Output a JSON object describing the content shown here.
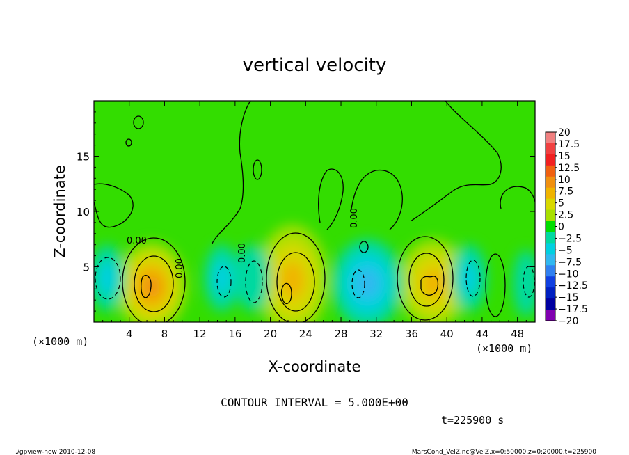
{
  "chart_data": {
    "type": "heatmap",
    "title": "vertical velocity",
    "xlabel": "X-coordinate",
    "ylabel": "Z-coordinate",
    "x_unit_left": "(×1000 m)",
    "x_unit_right": "(×1000 m)",
    "xlim": [
      0,
      50
    ],
    "ylim": [
      0,
      20
    ],
    "x_ticks": [
      "4",
      "8",
      "12",
      "16",
      "20",
      "24",
      "28",
      "32",
      "36",
      "40",
      "44",
      "48"
    ],
    "y_ticks": [
      "5",
      "10",
      "15"
    ],
    "colorbar_labels": [
      "20",
      "17.5",
      "15",
      "12.5",
      "10",
      "7.5",
      "5",
      "2.5",
      "0",
      "−2.5",
      "−5",
      "−7.5",
      "−10",
      "−12.5",
      "−15",
      "−17.5",
      "−20"
    ],
    "colorbar_colors": [
      "#f08080",
      "#f04040",
      "#f02020",
      "#f06010",
      "#f09010",
      "#f0b400",
      "#d8d800",
      "#a8e000",
      "#00dd00",
      "#00d9a0",
      "#00d0e0",
      "#30b8f0",
      "#3080f0",
      "#1040e0",
      "#0020c0",
      "#0000a0",
      "#8000b0"
    ],
    "contour_interval": "CONTOUR INTERVAL = 5.000E+00",
    "contour_labels": [
      "0.00",
      "0.00",
      "0.00",
      "0.00"
    ],
    "time_label": "t=225900 s",
    "anomalies": [
      {
        "x": 6.5,
        "z": 3.2,
        "w": 9,
        "rx": 4,
        "rz": 4
      },
      {
        "x": 22.5,
        "z": 3.8,
        "w": 7,
        "rx": 4,
        "rz": 5
      },
      {
        "x": 38.5,
        "z": 3.5,
        "w": 7,
        "rx": 4,
        "rz": 4
      },
      {
        "x": 31,
        "z": 3.5,
        "w": -8,
        "rx": 4,
        "rz": 4
      },
      {
        "x": 1.5,
        "z": 4,
        "w": -4,
        "rx": 2,
        "rz": 3
      },
      {
        "x": 14.5,
        "z": 4,
        "w": -5,
        "rx": 2,
        "rz": 3
      },
      {
        "x": 18,
        "z": 4,
        "w": -3,
        "rx": 2,
        "rz": 3
      },
      {
        "x": 42.5,
        "z": 4,
        "w": -4,
        "rx": 2,
        "rz": 3
      },
      {
        "x": 49,
        "z": 3.5,
        "w": -3,
        "rx": 1.5,
        "rz": 3
      }
    ]
  },
  "footer": {
    "left": "./gpview-new  2010-12-08",
    "right": "MarsCond_VelZ.nc@VelZ,x=0:50000,z=0:20000,t=225900"
  }
}
